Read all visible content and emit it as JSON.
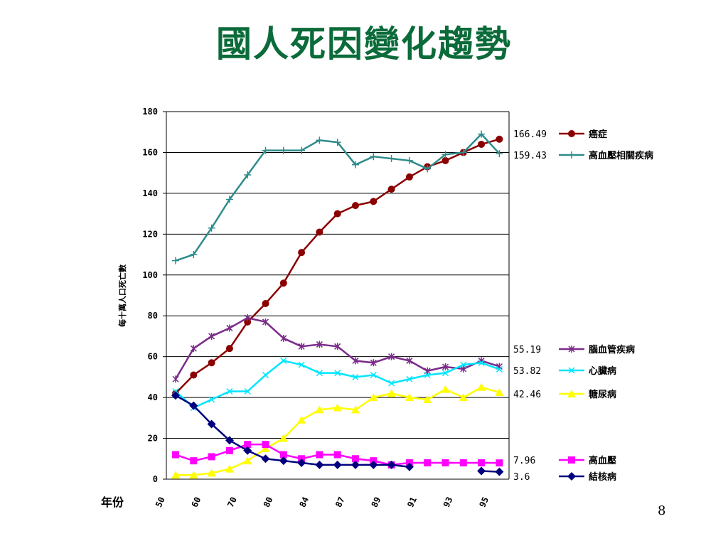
{
  "slide": {
    "title": "國人死因變化趨勢",
    "page_number": "8"
  },
  "chart_data": {
    "type": "line",
    "title": "國人死因變化趨勢",
    "xlabel": "年份",
    "ylabel": "每十萬人口死亡數",
    "ylim": [
      0,
      180
    ],
    "yticks": [
      0,
      20,
      40,
      60,
      80,
      100,
      120,
      140,
      160,
      180
    ],
    "x_tick_labels": [
      "50",
      "60",
      "70",
      "80",
      "84",
      "87",
      "89",
      "91",
      "93",
      "95"
    ],
    "grid": "horizontal",
    "legend": "right",
    "points": 19,
    "series": [
      {
        "name": "癌症",
        "color": "#8b0000",
        "marker": "circle",
        "end_label": "166.49",
        "values": [
          42,
          51,
          57,
          64,
          77,
          86,
          96,
          111,
          121,
          130,
          134,
          136,
          142,
          148,
          153,
          156,
          160,
          164,
          166.49
        ]
      },
      {
        "name": "高血壓相關疾病",
        "color": "#2e8b8b",
        "marker": "plus",
        "end_label": "159.43",
        "values": [
          107,
          110,
          123,
          137,
          149,
          161,
          161,
          161,
          166,
          165,
          154,
          158,
          157,
          156,
          152,
          159,
          160,
          169,
          159.43
        ]
      },
      {
        "name": "腦血管疾病",
        "color": "#7b2a8b",
        "marker": "star",
        "end_label": "55.19",
        "values": [
          49,
          64,
          70,
          74,
          79,
          77,
          69,
          65,
          66,
          65,
          58,
          57,
          60,
          58,
          53,
          55,
          54,
          58,
          55.19
        ]
      },
      {
        "name": "心臟病",
        "color": "#00e5ff",
        "marker": "x",
        "end_label": "53.82",
        "values": [
          43,
          35,
          39,
          43,
          43,
          51,
          58,
          56,
          52,
          52,
          50,
          51,
          47,
          49,
          51,
          52,
          56,
          57,
          53.82
        ]
      },
      {
        "name": "糖尿病",
        "color": "#ffff00",
        "marker": "triangle",
        "end_label": "42.46",
        "values": [
          2,
          2,
          3,
          5,
          9,
          15,
          20,
          29,
          34,
          35,
          34,
          40,
          42,
          40,
          39,
          44,
          40,
          45,
          42.46
        ]
      },
      {
        "name": "高血壓",
        "color": "#ff00ff",
        "marker": "square",
        "end_label": "7.96",
        "values": [
          12,
          9,
          11,
          14,
          17,
          17,
          12,
          10,
          12,
          12,
          10,
          9,
          7,
          8,
          8,
          8,
          8,
          8,
          7.96
        ]
      },
      {
        "name": "結核病",
        "color": "#00007f",
        "marker": "diamond",
        "end_label": "3.6",
        "values": [
          41,
          36,
          27,
          19,
          14,
          10,
          9,
          8,
          7,
          7,
          7,
          7,
          7,
          6,
          null,
          null,
          null,
          4,
          3.6
        ]
      }
    ]
  }
}
